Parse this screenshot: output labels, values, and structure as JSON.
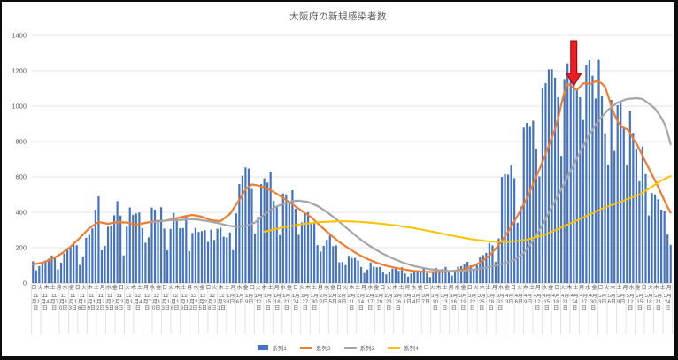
{
  "page": {
    "background": "#ffffff",
    "frame_color": "#0d0d0d"
  },
  "chart_data": {
    "type": "combo",
    "title": "大阪府の新規感染者数",
    "title_color": "#595959",
    "xlabel": "",
    "ylabel": "",
    "ylim": [
      0,
      1400
    ],
    "y_ticks": [
      0,
      200,
      400,
      600,
      800,
      1000,
      1200,
      1400
    ],
    "grid": "horizontal",
    "legend_position": "bottom",
    "x_total_days": 205,
    "x_first_date": "11月1日",
    "x_last_date": "5月24日",
    "x_dow_cycle": [
      "日",
      "火",
      "木",
      "土",
      "月",
      "水",
      "金"
    ],
    "x_dow_step_days": 2,
    "x_date_step_days": 3,
    "x_date_labels": [
      "11月1日",
      "11月4日",
      "11月7日",
      "11月10日",
      "11月13日",
      "11月16日",
      "11月19日",
      "11月22日",
      "11月25日",
      "11月28日",
      "12月1日",
      "12月4日",
      "12月7日",
      "12月10日",
      "12月13日",
      "12月16日",
      "12月19日",
      "12月22日",
      "12月25日",
      "12月28日",
      "12月31日",
      "1月3日",
      "1月6日",
      "1月9日",
      "1月12日",
      "1月15日",
      "1月18日",
      "1月21日",
      "1月24日",
      "1月27日",
      "1月30日",
      "2月2日",
      "2月5日",
      "2月8日",
      "2月11日",
      "2月14日",
      "2月17日",
      "2月20日",
      "2月23日",
      "2月26日",
      "3月1日",
      "3月4日",
      "3月7日",
      "3月10日",
      "3月13日",
      "3月16日",
      "3月19日",
      "3月22日",
      "3月25日",
      "3月28日",
      "3月31日",
      "4月3日",
      "4月6日",
      "4月9日",
      "4月12日",
      "4月15日",
      "4月18日",
      "4月21日",
      "4月24日",
      "4月27日",
      "4月30日",
      "5月3日",
      "5月6日",
      "5月9日",
      "5月12日",
      "5月15日",
      "5月18日",
      "5月21日",
      "5月24日"
    ],
    "series": [
      {
        "name": "系列1",
        "type": "bar",
        "color": "#4472C4",
        "values": [
          123,
          72,
          96,
          118,
          127,
          138,
          156,
          141,
          78,
          115,
          167,
          189,
          205,
          231,
          214,
          102,
          148,
          256,
          273,
          309,
          415,
          490,
          185,
          210,
          318,
          326,
          383,
          463,
          381,
          156,
          318,
          427,
          386,
          394,
          399,
          310,
          228,
          258,
          427,
          415,
          357,
          429,
          308,
          185,
          306,
          396,
          351,
          309,
          311,
          382,
          180,
          283,
          312,
          289,
          294,
          299,
          233,
          302,
          244,
          307,
          313,
          262,
          258,
          286,
          186,
          394,
          560,
          607,
          654,
          647,
          532,
          281,
          374,
          560,
          592,
          568,
          629,
          464,
          431,
          271,
          506,
          501,
          450,
          525,
          421,
          273,
          343,
          397,
          401,
          337,
          338,
          214,
          178,
          211,
          244,
          269,
          209,
          213,
          117,
          119,
          102,
          154,
          141,
          142,
          127,
          91,
          57,
          76,
          116,
          92,
          89,
          91,
          62,
          49,
          64,
          81,
          82,
          69,
          89,
          54,
          36,
          54,
          66,
          68,
          65,
          84,
          56,
          34,
          58,
          84,
          74,
          80,
          91,
          62,
          42,
          67,
          92,
          95,
          105,
          120,
          100,
          79,
          103,
          147,
          158,
          171,
          225,
          213,
          119,
          252,
          599,
          616,
          613,
          666,
          593,
          341,
          432,
          878,
          905,
          883,
          918,
          760,
          603,
          1099,
          1130,
          1208,
          1209,
          1161,
          1050,
          719,
          1153,
          1242,
          1167,
          1162,
          1097,
          1050,
          922,
          1230,
          1260,
          1172,
          1043,
          1262,
          1057,
          847,
          668,
          1035,
          747,
          1005,
          1021,
          874,
          668,
          974,
          849,
          761,
          576,
          772,
          616,
          382,
          509,
          501,
          474,
          415,
          406,
          274,
          216
        ]
      },
      {
        "name": "系列2",
        "type": "line",
        "color": "#ED7D31",
        "points": [
          [
            0,
            105
          ],
          [
            3,
            115
          ],
          [
            6,
            135
          ],
          [
            9,
            165
          ],
          [
            12,
            205
          ],
          [
            15,
            255
          ],
          [
            18,
            310
          ],
          [
            21,
            345
          ],
          [
            24,
            335
          ],
          [
            27,
            345
          ],
          [
            30,
            342
          ],
          [
            33,
            330
          ],
          [
            36,
            340
          ],
          [
            39,
            350
          ],
          [
            42,
            352
          ],
          [
            45,
            362
          ],
          [
            48,
            375
          ],
          [
            51,
            385
          ],
          [
            54,
            375
          ],
          [
            57,
            355
          ],
          [
            60,
            350
          ],
          [
            63,
            390
          ],
          [
            66,
            470
          ],
          [
            68,
            530
          ],
          [
            70,
            558
          ],
          [
            72,
            552
          ],
          [
            74,
            542
          ],
          [
            77,
            515
          ],
          [
            80,
            482
          ],
          [
            83,
            445
          ],
          [
            86,
            408
          ],
          [
            89,
            372
          ],
          [
            92,
            322
          ],
          [
            95,
            275
          ],
          [
            98,
            232
          ],
          [
            101,
            196
          ],
          [
            104,
            162
          ],
          [
            107,
            136
          ],
          [
            110,
            114
          ],
          [
            113,
            98
          ],
          [
            116,
            86
          ],
          [
            119,
            76
          ],
          [
            122,
            68
          ],
          [
            125,
            64
          ],
          [
            128,
            62
          ],
          [
            131,
            63
          ],
          [
            134,
            67
          ],
          [
            137,
            75
          ],
          [
            140,
            90
          ],
          [
            143,
            115
          ],
          [
            146,
            155
          ],
          [
            149,
            215
          ],
          [
            152,
            290
          ],
          [
            155,
            380
          ],
          [
            158,
            480
          ],
          [
            161,
            600
          ],
          [
            164,
            730
          ],
          [
            167,
            870
          ],
          [
            168,
            930
          ],
          [
            169,
            1010
          ],
          [
            170,
            1080
          ],
          [
            171,
            1125
          ],
          [
            172,
            1118
          ],
          [
            173,
            1100
          ],
          [
            174,
            1092
          ],
          [
            175,
            1110
          ],
          [
            176,
            1128
          ],
          [
            177,
            1130
          ],
          [
            178,
            1124
          ],
          [
            179,
            1132
          ],
          [
            180,
            1140
          ],
          [
            181,
            1138
          ],
          [
            182,
            1128
          ],
          [
            183,
            1108
          ],
          [
            184,
            1058
          ],
          [
            185,
            1000
          ],
          [
            186,
            952
          ],
          [
            187,
            915
          ],
          [
            188,
            890
          ],
          [
            189,
            876
          ],
          [
            190,
            870
          ],
          [
            191,
            850
          ],
          [
            192,
            815
          ],
          [
            193,
            790
          ],
          [
            194,
            756
          ],
          [
            195,
            720
          ],
          [
            196,
            684
          ],
          [
            197,
            648
          ],
          [
            198,
            614
          ],
          [
            199,
            580
          ],
          [
            200,
            544
          ],
          [
            201,
            505
          ],
          [
            202,
            465
          ],
          [
            203,
            430
          ],
          [
            204,
            398
          ]
        ]
      },
      {
        "name": "系列3",
        "type": "line",
        "color": "#A5A5A5",
        "points": [
          [
            38,
            345
          ],
          [
            41,
            350
          ],
          [
            44,
            356
          ],
          [
            47,
            356
          ],
          [
            50,
            362
          ],
          [
            53,
            358
          ],
          [
            56,
            350
          ],
          [
            59,
            340
          ],
          [
            62,
            326
          ],
          [
            65,
            318
          ],
          [
            68,
            322
          ],
          [
            71,
            342
          ],
          [
            74,
            388
          ],
          [
            77,
            425
          ],
          [
            80,
            448
          ],
          [
            83,
            462
          ],
          [
            85,
            466
          ],
          [
            88,
            458
          ],
          [
            91,
            436
          ],
          [
            94,
            402
          ],
          [
            97,
            362
          ],
          [
            100,
            316
          ],
          [
            103,
            272
          ],
          [
            106,
            230
          ],
          [
            109,
            196
          ],
          [
            112,
            165
          ],
          [
            115,
            140
          ],
          [
            118,
            118
          ],
          [
            121,
            100
          ],
          [
            124,
            88
          ],
          [
            127,
            78
          ],
          [
            130,
            72
          ],
          [
            133,
            68
          ],
          [
            136,
            68
          ],
          [
            139,
            72
          ],
          [
            142,
            78
          ],
          [
            145,
            88
          ],
          [
            148,
            98
          ],
          [
            151,
            112
          ],
          [
            154,
            130
          ],
          [
            157,
            170
          ],
          [
            160,
            240
          ],
          [
            163,
            330
          ],
          [
            166,
            430
          ],
          [
            169,
            530
          ],
          [
            172,
            635
          ],
          [
            175,
            740
          ],
          [
            178,
            840
          ],
          [
            181,
            920
          ],
          [
            184,
            980
          ],
          [
            187,
            1020
          ],
          [
            190,
            1040
          ],
          [
            193,
            1045
          ],
          [
            195,
            1040
          ],
          [
            197,
            1015
          ],
          [
            199,
            985
          ],
          [
            201,
            935
          ],
          [
            202,
            900
          ],
          [
            203,
            850
          ],
          [
            204,
            785
          ]
        ]
      },
      {
        "name": "系列4",
        "type": "line",
        "color": "#FFC000",
        "points": [
          [
            74,
            290
          ],
          [
            80,
            315
          ],
          [
            86,
            333
          ],
          [
            92,
            345
          ],
          [
            98,
            350
          ],
          [
            104,
            347
          ],
          [
            110,
            338
          ],
          [
            116,
            326
          ],
          [
            122,
            310
          ],
          [
            128,
            290
          ],
          [
            134,
            268
          ],
          [
            140,
            248
          ],
          [
            146,
            235
          ],
          [
            152,
            232
          ],
          [
            158,
            245
          ],
          [
            164,
            275
          ],
          [
            170,
            322
          ],
          [
            176,
            370
          ],
          [
            182,
            420
          ],
          [
            188,
            460
          ],
          [
            194,
            500
          ],
          [
            198,
            545
          ],
          [
            201,
            580
          ],
          [
            204,
            605
          ]
        ]
      }
    ],
    "annotation": {
      "shape": "block-arrow-down",
      "day": 173,
      "near_label": "4月24日",
      "top_value": 1370,
      "tip_value": 1115,
      "fill": "#EE1C25",
      "outline": "#9C0006"
    }
  }
}
